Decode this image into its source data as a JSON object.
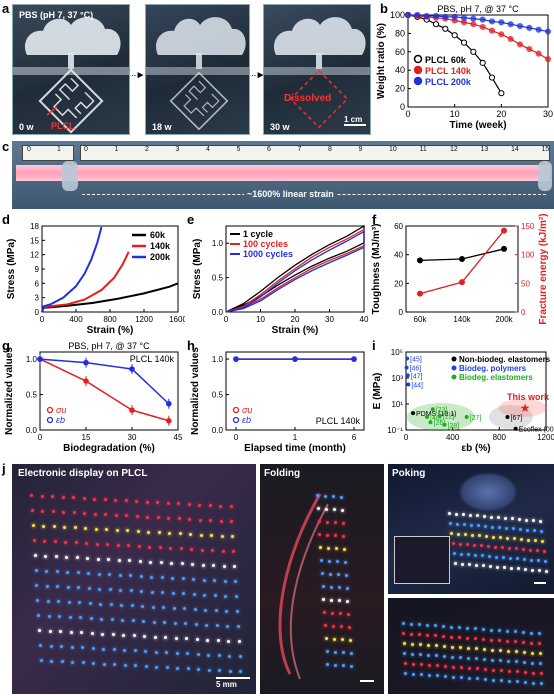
{
  "panel_a": {
    "label": "a",
    "condition": "PBS (pH 7, 37 °C)",
    "frames": [
      {
        "time": "0 w",
        "tag": "PLCL"
      },
      {
        "time": "18 w",
        "tag": ""
      },
      {
        "time": "30 w",
        "tag": "Dissolved"
      }
    ],
    "scalebar": "1 cm"
  },
  "panel_b": {
    "label": "b"
  },
  "panel_c": {
    "label": "c",
    "ruler_left": [
      "0",
      "1"
    ],
    "ruler_right": [
      "0",
      "1",
      "2",
      "3",
      "4",
      "5",
      "6",
      "7",
      "8",
      "9",
      "10",
      "11",
      "12",
      "13",
      "14",
      "15"
    ],
    "caption": "~1600% linear strain"
  },
  "panel_d": {
    "label": "d"
  },
  "panel_e": {
    "label": "e"
  },
  "panel_f": {
    "label": "f"
  },
  "panel_g": {
    "label": "g"
  },
  "panel_h": {
    "label": "h"
  },
  "panel_i": {
    "label": "i"
  },
  "panel_j": {
    "label": "j",
    "title": "Electronic display on PLCL",
    "scalebar": "5 mm",
    "folding": "Folding",
    "poking": "Poking"
  },
  "chart_data": [
    {
      "id": "b",
      "type": "scatter",
      "title": "PBS, pH 7, @ 37 °C",
      "xlabel": "Time (week)",
      "ylabel": "Weight ratio (%)",
      "xlim": [
        0,
        30
      ],
      "ylim": [
        0,
        100
      ],
      "xticks": [
        "0",
        "10",
        "20",
        "30"
      ],
      "yticks": [
        "0",
        "20",
        "40",
        "60",
        "80",
        "100"
      ],
      "series": [
        {
          "name": "PLCL 60k",
          "color": "#000000",
          "x": [
            0,
            2,
            4,
            6,
            8,
            10,
            12,
            14,
            16,
            18,
            20
          ],
          "y": [
            100,
            98,
            95,
            90,
            85,
            78,
            70,
            60,
            48,
            32,
            15
          ]
        },
        {
          "name": "PLCL 140k",
          "color": "#e02020",
          "x": [
            0,
            2,
            4,
            6,
            8,
            10,
            12,
            14,
            16,
            18,
            20,
            22,
            24,
            26,
            28,
            30
          ],
          "y": [
            100,
            99,
            98,
            97,
            96,
            94,
            92,
            90,
            87,
            83,
            79,
            74,
            68,
            63,
            58,
            52
          ]
        },
        {
          "name": "PLCL 200k",
          "color": "#2030e0",
          "x": [
            0,
            2,
            4,
            6,
            8,
            10,
            12,
            14,
            16,
            18,
            20,
            22,
            24,
            26,
            28,
            30
          ],
          "y": [
            100,
            100,
            99,
            99,
            98,
            98,
            97,
            96,
            95,
            93,
            92,
            90,
            88,
            86,
            84,
            82
          ]
        }
      ]
    },
    {
      "id": "d",
      "type": "line",
      "xlabel": "Strain (%)",
      "ylabel": "Stress (MPa)",
      "xlim": [
        0,
        1600
      ],
      "ylim": [
        0,
        18
      ],
      "xticks": [
        "0",
        "400",
        "800",
        "1200",
        "1600"
      ],
      "yticks": [
        "0",
        "3",
        "6",
        "9",
        "12",
        "15",
        "18"
      ],
      "series": [
        {
          "name": "60k",
          "color": "#000000",
          "x": [
            0,
            20,
            100,
            300,
            600,
            900,
            1200,
            1500,
            1600
          ],
          "y": [
            0,
            0.9,
            1.0,
            1.3,
            1.9,
            2.8,
            3.9,
            5.3,
            6.0
          ]
        },
        {
          "name": "140k",
          "color": "#e02020",
          "x": [
            0,
            20,
            100,
            300,
            500,
            700,
            850,
            950,
            1020
          ],
          "y": [
            0,
            1.0,
            1.2,
            1.6,
            2.6,
            4.6,
            7.2,
            10.0,
            12.6
          ]
        },
        {
          "name": "200k",
          "color": "#2030e0",
          "x": [
            0,
            20,
            100,
            250,
            400,
            500,
            580,
            650,
            700
          ],
          "y": [
            0,
            1.2,
            1.6,
            3.0,
            5.4,
            8.0,
            11.0,
            14.5,
            17.8
          ]
        }
      ]
    },
    {
      "id": "e",
      "type": "line",
      "xlabel": "Strain (%)",
      "ylabel": "Stress (MPa)",
      "xlim": [
        0,
        40
      ],
      "ylim": [
        0,
        1.25
      ],
      "xticks": [
        "0",
        "10",
        "20",
        "30",
        "40"
      ],
      "yticks": [
        "0.0",
        "0.5",
        "1.0"
      ],
      "series": [
        {
          "name": "1 cycle",
          "color": "#000000",
          "x": [
            0,
            5,
            10,
            15,
            20,
            25,
            30,
            35,
            40
          ],
          "y": [
            0,
            0.12,
            0.3,
            0.5,
            0.68,
            0.84,
            0.98,
            1.1,
            1.25
          ]
        },
        {
          "name": "100 cycles",
          "color": "#e02020",
          "x": [
            0,
            5,
            10,
            15,
            20,
            25,
            30,
            35,
            40
          ],
          "y": [
            0,
            0.08,
            0.25,
            0.45,
            0.63,
            0.8,
            0.94,
            1.06,
            1.2
          ]
        },
        {
          "name": "1000 cycles",
          "color": "#2030e0",
          "x": [
            0,
            5,
            10,
            15,
            20,
            25,
            30,
            35,
            40
          ],
          "y": [
            0,
            0.06,
            0.22,
            0.42,
            0.6,
            0.76,
            0.9,
            1.03,
            1.17
          ]
        }
      ]
    },
    {
      "id": "f",
      "type": "line",
      "ylabel_left": "Toughness (MJ/m³)",
      "ylabel_right": "Fracture energy (kJ/m²)",
      "categories": [
        "60k",
        "140k",
        "200k"
      ],
      "ylim_left": [
        0,
        60
      ],
      "ylim_right": [
        0,
        150
      ],
      "yticks_left": [
        "0",
        "20",
        "40",
        "60"
      ],
      "yticks_right": [
        "0",
        "50",
        "100",
        "150"
      ],
      "series": [
        {
          "axis": "left",
          "color": "#000000",
          "values": [
            36,
            37,
            44
          ]
        },
        {
          "axis": "right",
          "color": "#e02020",
          "values": [
            32,
            52,
            142
          ]
        }
      ]
    },
    {
      "id": "g",
      "type": "line",
      "title": "PBS, pH 7, @ 37 °C",
      "annotation": "PLCL 140k",
      "xlabel": "Biodegradation (%)",
      "ylabel": "Normalized values",
      "xlim": [
        0,
        45
      ],
      "ylim": [
        0,
        1.1
      ],
      "xticks": [
        "0",
        "15",
        "30",
        "45"
      ],
      "yticks": [
        "0.0",
        "0.5",
        "1.0"
      ],
      "series": [
        {
          "name": "σu",
          "color": "#e02020",
          "x": [
            0,
            15,
            30,
            42
          ],
          "y": [
            1.0,
            0.69,
            0.28,
            0.13
          ]
        },
        {
          "name": "εb",
          "color": "#2030e0",
          "x": [
            0,
            15,
            30,
            42
          ],
          "y": [
            1.0,
            0.95,
            0.86,
            0.37
          ]
        }
      ]
    },
    {
      "id": "h",
      "type": "line",
      "annotation": "PLCL 140k",
      "xlabel": "Elapsed time (month)",
      "ylabel": "Normalized values",
      "categories": [
        "0",
        "1",
        "6"
      ],
      "ylim": [
        0,
        1.1
      ],
      "yticks": [
        "0.0",
        "0.5",
        "1.0"
      ],
      "series": [
        {
          "name": "σu",
          "color": "#e02020",
          "values": [
            1.0,
            1.0,
            1.0
          ]
        },
        {
          "name": "εb",
          "color": "#2030e0",
          "values": [
            1.0,
            1.0,
            1.0
          ]
        }
      ]
    },
    {
      "id": "i",
      "type": "scatter",
      "xlabel": "εb (%)",
      "ylabel": "E (MPa)",
      "xlim": [
        0,
        1200
      ],
      "ylim_log": [
        -1,
        5
      ],
      "xticks": [
        "0",
        "400",
        "800",
        "1200"
      ],
      "yticks": [
        "10⁻¹",
        "10¹",
        "10³",
        "10⁵"
      ],
      "legend": [
        "Non-biodeg. elastomers",
        "Biodeg. polymers",
        "Biodeg. elastomers"
      ],
      "legend_colors": [
        "#000000",
        "#2040e0",
        "#22aa22"
      ],
      "this_work": "This work",
      "points": [
        {
          "label": "[45]",
          "group": 1,
          "x": 10,
          "y": 4.5
        },
        {
          "label": "[46]",
          "group": 1,
          "x": 5,
          "y": 3.8
        },
        {
          "label": "[47]",
          "group": 1,
          "x": 15,
          "y": 3.2
        },
        {
          "label": "[44]",
          "group": 1,
          "x": 20,
          "y": 2.5
        },
        {
          "label": "PDMS (10:1)",
          "group": 0,
          "x": 60,
          "y": 0.3
        },
        {
          "label": "[23]",
          "group": 2,
          "x": 230,
          "y": 0.6
        },
        {
          "label": "[48]",
          "group": 2,
          "x": 180,
          "y": 0.0
        },
        {
          "label": "[22]",
          "group": 2,
          "x": 290,
          "y": 0.1
        },
        {
          "label": "[26]",
          "group": 2,
          "x": 210,
          "y": -0.4
        },
        {
          "label": "[28]",
          "group": 2,
          "x": 330,
          "y": -0.6
        },
        {
          "label": "[27]",
          "group": 2,
          "x": 520,
          "y": 0.0
        },
        {
          "label": "[67]",
          "group": 0,
          "x": 870,
          "y": 0.0
        },
        {
          "label": "Ecoflex (00-30)",
          "group": 0,
          "x": 940,
          "y": -0.9
        },
        {
          "label": "This work",
          "group": 3,
          "x": 1020,
          "y": 0.7
        }
      ]
    }
  ]
}
